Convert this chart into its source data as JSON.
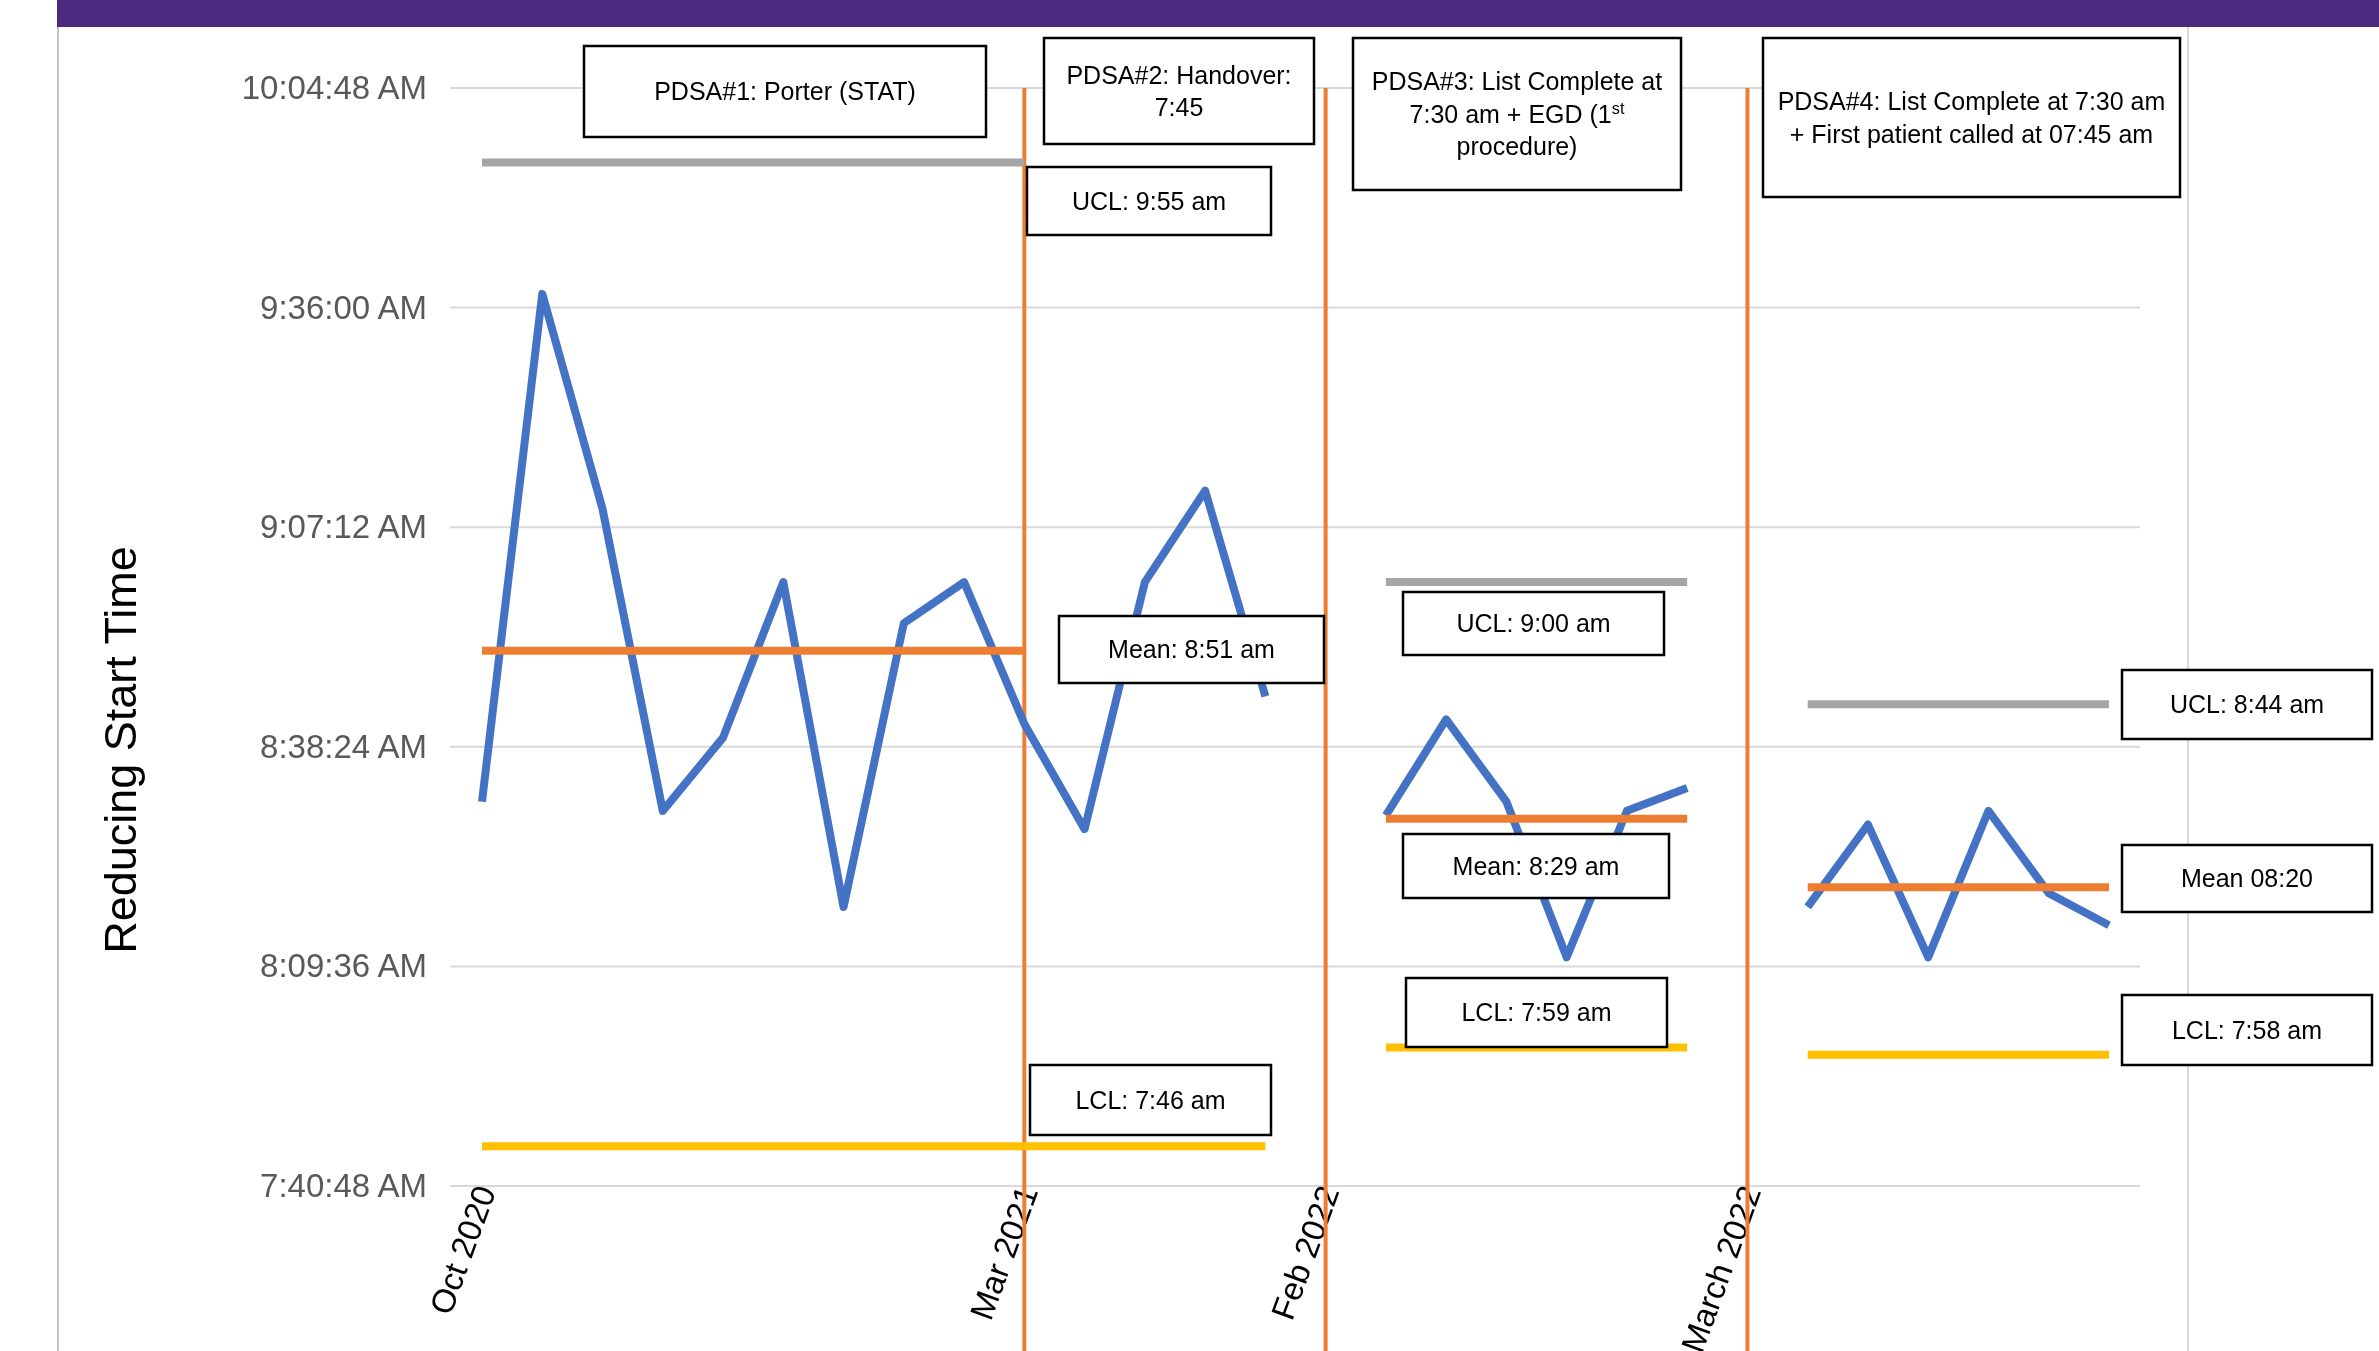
{
  "chart_data": {
    "type": "line",
    "ylabel": "Reducing Start Time",
    "categories": [
      "Oct 2020",
      null,
      null,
      null,
      null,
      null,
      null,
      null,
      null,
      "Mar 2021",
      null,
      null,
      null,
      null,
      "Feb 2022",
      null,
      null,
      null,
      null,
      null,
      null,
      "March 2022",
      null,
      null,
      null,
      null,
      null,
      null
    ],
    "series": [
      {
        "color": "#4472c4",
        "values": [
          8.52,
          9.63,
          9.16,
          8.5,
          8.66,
          9.0,
          8.29,
          8.91,
          9.0,
          8.69,
          8.46,
          9.0,
          9.2,
          8.75,
          null,
          8.49,
          8.7,
          8.52,
          8.18,
          8.5,
          8.55,
          null,
          8.29,
          8.47,
          8.18,
          8.5,
          8.32,
          8.25
        ]
      },
      {
        "color": "#a5a5a5",
        "values": [
          9.917,
          9.917,
          9.917,
          9.917,
          9.917,
          9.917,
          9.917,
          9.917,
          9.917,
          9.917,
          null,
          null,
          null,
          null,
          null,
          9.0,
          9.0,
          9.0,
          9.0,
          9.0,
          9.0,
          null,
          8.733,
          8.733,
          8.733,
          8.733,
          8.733,
          8.733
        ]
      },
      {
        "color": "#ed7d31",
        "values": [
          8.85,
          8.85,
          8.85,
          8.85,
          8.85,
          8.85,
          8.85,
          8.85,
          8.85,
          8.85,
          null,
          null,
          null,
          null,
          null,
          8.483,
          8.483,
          8.483,
          8.483,
          8.483,
          8.483,
          null,
          8.333,
          8.333,
          8.333,
          8.333,
          8.333,
          8.333
        ]
      },
      {
        "color": "#ffc000",
        "values": [
          7.767,
          7.767,
          7.767,
          7.767,
          7.767,
          7.767,
          7.767,
          7.767,
          7.767,
          7.767,
          7.767,
          7.767,
          7.767,
          7.767,
          null,
          7.983,
          7.983,
          7.983,
          7.983,
          7.983,
          7.983,
          null,
          7.967,
          7.967,
          7.967,
          7.967,
          7.967,
          7.967
        ]
      }
    ],
    "ylim": [
      7.68,
      10.08
    ],
    "yticks": [
      {
        "value": 7.68,
        "label": "7:40:48 AM"
      },
      {
        "value": 8.16,
        "label": "8:09:36 AM"
      },
      {
        "value": 8.64,
        "label": "8:38:24 AM"
      },
      {
        "value": 9.12,
        "label": "9:07:12 AM"
      },
      {
        "value": 9.6,
        "label": "9:36:00 AM"
      },
      {
        "value": 10.08,
        "label": "10:04:48 AM"
      }
    ],
    "grid": "y",
    "ref_lines": [
      {
        "axis": "x",
        "value": "Mar 2021",
        "color": "#ed7d31"
      },
      {
        "axis": "x",
        "value": "Feb 2022",
        "color": "#ed7d31"
      },
      {
        "axis": "x",
        "value": "March 2022",
        "color": "#ed7d31"
      }
    ],
    "annotations": [
      "PDSA#1: Porter (STAT)",
      "PDSA#2: Handover: 7:45",
      "PDSA#3: List Complete at 7:30 am + EGD (1$^{st}$ procedure)",
      "PDSA#4: List Complete at 7:30 am + First patient called at 07:45 am",
      "UCL: 9:55 am",
      "Mean: 8:51 am",
      "LCL: 7:46 am",
      "UCL: 9:00 am",
      "Mean: 8:29 am",
      "LCL: 7:59 am",
      "UCL: 8:44 am",
      "Mean 08:20",
      "LCL: 7:58 am"
    ]
  }
}
